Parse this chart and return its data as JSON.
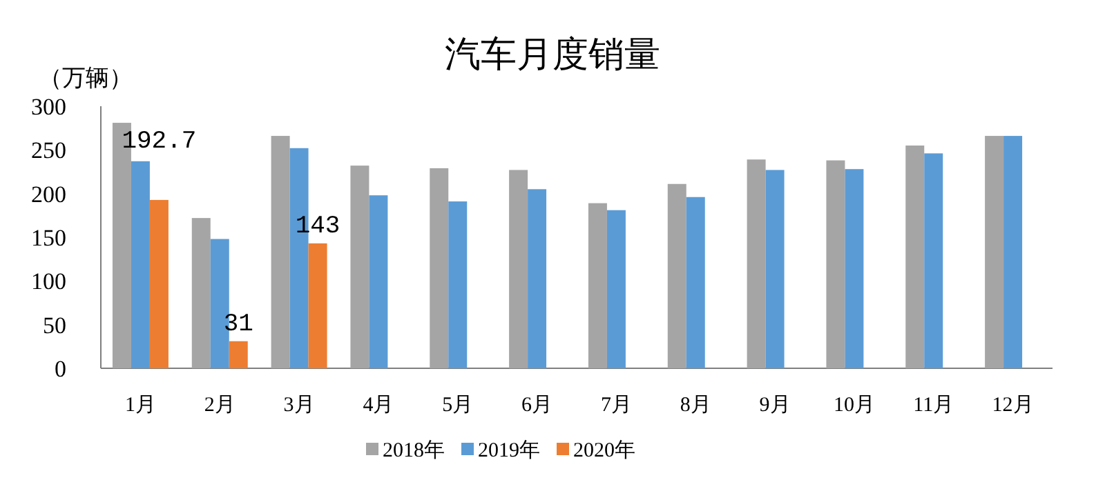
{
  "chart_data": {
    "type": "bar",
    "title": "汽车月度销量",
    "ylabel": "（万辆）",
    "categories": [
      "1月",
      "2月",
      "3月",
      "4月",
      "5月",
      "6月",
      "7月",
      "8月",
      "9月",
      "10月",
      "11月",
      "12月"
    ],
    "series": [
      {
        "name": "2018年",
        "color": "#a5a5a5",
        "values": [
          281,
          172,
          266,
          232,
          229,
          227,
          189,
          211,
          239,
          238,
          255,
          266
        ]
      },
      {
        "name": "2019年",
        "color": "#5b9bd5",
        "values": [
          237,
          148,
          252,
          198,
          191,
          205,
          181,
          196,
          227,
          228,
          246,
          266
        ]
      },
      {
        "name": "2020年",
        "color": "#ed7d31",
        "values": [
          192.7,
          31,
          143,
          null,
          null,
          null,
          null,
          null,
          null,
          null,
          null,
          null
        ],
        "value_labels": [
          "192.7",
          "31",
          "143",
          null,
          null,
          null,
          null,
          null,
          null,
          null,
          null,
          null
        ]
      }
    ],
    "ylim": [
      0,
      300
    ],
    "yticks": [
      0,
      50,
      100,
      150,
      200,
      250,
      300
    ],
    "grid": false,
    "legend": "bottom"
  }
}
